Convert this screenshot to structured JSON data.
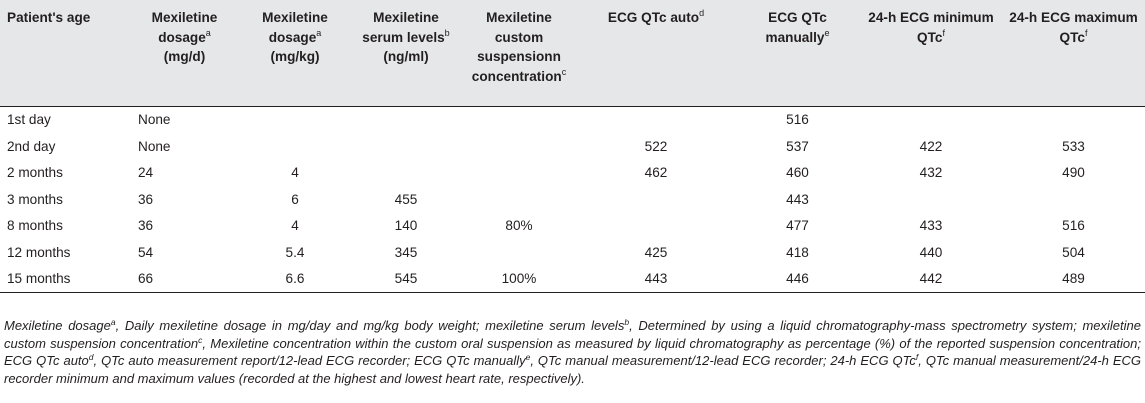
{
  "headers": [
    {
      "text": "Patient's age",
      "sup": ""
    },
    {
      "text": "Mexiletine dosage",
      "sup": "a",
      "after": "(mg/d)"
    },
    {
      "text": "Mexiletine dosage",
      "sup": "a",
      "after": "(mg/kg)"
    },
    {
      "text": "Mexiletine serum levels",
      "sup": "b",
      "after": "(ng/ml)"
    },
    {
      "text": "Mexiletine custom suspensionn concentration",
      "sup": "c",
      "after": ""
    },
    {
      "text": "ECG QTc auto",
      "sup": "d",
      "after": ""
    },
    {
      "text": "ECG QTc manually",
      "sup": "e",
      "after": ""
    },
    {
      "text": "24-h ECG minimum QTc",
      "sup": "f",
      "after": ""
    },
    {
      "text": "24-h ECG maximum QTc",
      "sup": "f",
      "after": ""
    }
  ],
  "rows": [
    [
      "1st day",
      "None",
      "",
      "",
      "",
      "",
      "516",
      "",
      ""
    ],
    [
      "2nd day",
      "None",
      "",
      "",
      "",
      "522",
      "537",
      "422",
      "533"
    ],
    [
      "2 months",
      "24",
      "4",
      "",
      "",
      "462",
      "460",
      "432",
      "490"
    ],
    [
      "3 months",
      "36",
      "6",
      "455",
      "",
      "",
      "443",
      "",
      ""
    ],
    [
      "8 months",
      "36",
      "4",
      "140",
      "80%",
      "",
      "477",
      "433",
      "516"
    ],
    [
      "12 months",
      "54",
      "5.4",
      "345",
      "",
      "425",
      "418",
      "440",
      "504"
    ],
    [
      "15 months",
      "66",
      "6.6",
      "545",
      "100%",
      "443",
      "446",
      "442",
      "489"
    ]
  ],
  "footnote": [
    {
      "t": "Mexiletine dosage",
      "s": "a"
    },
    {
      "t": ", Daily mexiletine dosage in mg/day and mg/kg body weight; mexiletine serum levels",
      "s": "b"
    },
    {
      "t": ", Determined by using a liquid chromatography-mass spectrometry system; mexiletine custom suspension concentration",
      "s": "c"
    },
    {
      "t": ", Mexiletine concentration within the custom oral suspension as measured by liquid chromatography as percentage (%) of the reported suspension concentration; ECG QTc auto",
      "s": "d"
    },
    {
      "t": ", QTc auto measurement report/12-lead ECG recorder; ECG QTc manually",
      "s": "e"
    },
    {
      "t": ", QTc manual measurement/12-lead ECG recorder; 24-h ECG QTc",
      "s": "f"
    },
    {
      "t": ", QTc manual measurement/24-h ECG recorder minimum and maximum values (recorded at the highest and lowest heart rate, respectively).",
      "s": ""
    }
  ]
}
